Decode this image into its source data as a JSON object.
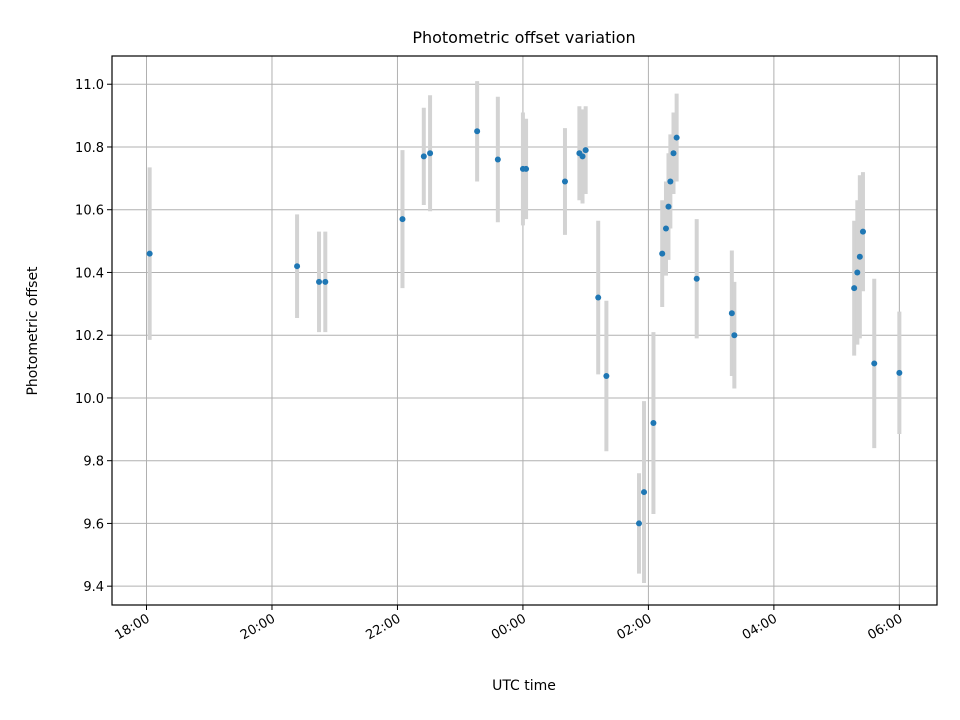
{
  "chart_data": {
    "type": "scatter",
    "title": "Photometric offset variation",
    "xlabel": "UTC time",
    "ylabel": "Photometric offset",
    "grid": true,
    "x_unit": "hours since 18:00 UTC",
    "xlim": [
      -0.55,
      12.6
    ],
    "ylim": [
      9.34,
      11.09
    ],
    "x_ticks": [
      {
        "value": 0,
        "label": "18:00"
      },
      {
        "value": 2,
        "label": "20:00"
      },
      {
        "value": 4,
        "label": "22:00"
      },
      {
        "value": 6,
        "label": "00:00"
      },
      {
        "value": 8,
        "label": "02:00"
      },
      {
        "value": 10,
        "label": "04:00"
      },
      {
        "value": 12,
        "label": "06:00"
      }
    ],
    "y_ticks": [
      {
        "value": 9.4,
        "label": "9.4"
      },
      {
        "value": 9.6,
        "label": "9.6"
      },
      {
        "value": 9.8,
        "label": "9.8"
      },
      {
        "value": 10.0,
        "label": "10.0"
      },
      {
        "value": 10.2,
        "label": "10.2"
      },
      {
        "value": 10.4,
        "label": "10.4"
      },
      {
        "value": 10.6,
        "label": "10.6"
      },
      {
        "value": 10.8,
        "label": "10.8"
      },
      {
        "value": 11.0,
        "label": "11.0"
      }
    ],
    "series": [
      {
        "name": "offset",
        "marker_color": "#1f77b4",
        "errorbar_color": "#d3d3d3",
        "points": [
          {
            "x": 0.05,
            "y": 10.46,
            "err": 0.275
          },
          {
            "x": 2.4,
            "y": 10.42,
            "err": 0.165
          },
          {
            "x": 2.75,
            "y": 10.37,
            "err": 0.16
          },
          {
            "x": 2.85,
            "y": 10.37,
            "err": 0.16
          },
          {
            "x": 4.08,
            "y": 10.57,
            "err": 0.22
          },
          {
            "x": 4.42,
            "y": 10.77,
            "err": 0.155
          },
          {
            "x": 4.52,
            "y": 10.78,
            "err": 0.185
          },
          {
            "x": 5.27,
            "y": 10.85,
            "err": 0.16
          },
          {
            "x": 5.6,
            "y": 10.76,
            "err": 0.2
          },
          {
            "x": 6.0,
            "y": 10.73,
            "err": 0.18
          },
          {
            "x": 6.05,
            "y": 10.73,
            "err": 0.16
          },
          {
            "x": 6.67,
            "y": 10.69,
            "err": 0.17
          },
          {
            "x": 6.9,
            "y": 10.78,
            "err": 0.15
          },
          {
            "x": 6.95,
            "y": 10.77,
            "err": 0.15
          },
          {
            "x": 7.0,
            "y": 10.79,
            "err": 0.14
          },
          {
            "x": 7.2,
            "y": 10.32,
            "err": 0.245
          },
          {
            "x": 7.33,
            "y": 10.07,
            "err": 0.24
          },
          {
            "x": 7.85,
            "y": 9.6,
            "err": 0.16
          },
          {
            "x": 7.93,
            "y": 9.7,
            "err": 0.29
          },
          {
            "x": 8.08,
            "y": 9.92,
            "err": 0.29
          },
          {
            "x": 8.22,
            "y": 10.46,
            "err": 0.17
          },
          {
            "x": 8.28,
            "y": 10.54,
            "err": 0.15
          },
          {
            "x": 8.32,
            "y": 10.61,
            "err": 0.17
          },
          {
            "x": 8.35,
            "y": 10.69,
            "err": 0.15
          },
          {
            "x": 8.4,
            "y": 10.78,
            "err": 0.13
          },
          {
            "x": 8.45,
            "y": 10.83,
            "err": 0.14
          },
          {
            "x": 8.77,
            "y": 10.38,
            "err": 0.19
          },
          {
            "x": 9.33,
            "y": 10.27,
            "err": 0.2
          },
          {
            "x": 9.37,
            "y": 10.2,
            "err": 0.17
          },
          {
            "x": 11.28,
            "y": 10.35,
            "err": 0.215
          },
          {
            "x": 11.33,
            "y": 10.4,
            "err": 0.23
          },
          {
            "x": 11.37,
            "y": 10.45,
            "err": 0.26
          },
          {
            "x": 11.42,
            "y": 10.53,
            "err": 0.19
          },
          {
            "x": 11.6,
            "y": 10.11,
            "err": 0.27
          },
          {
            "x": 12.0,
            "y": 10.08,
            "err": 0.195
          }
        ]
      }
    ]
  }
}
